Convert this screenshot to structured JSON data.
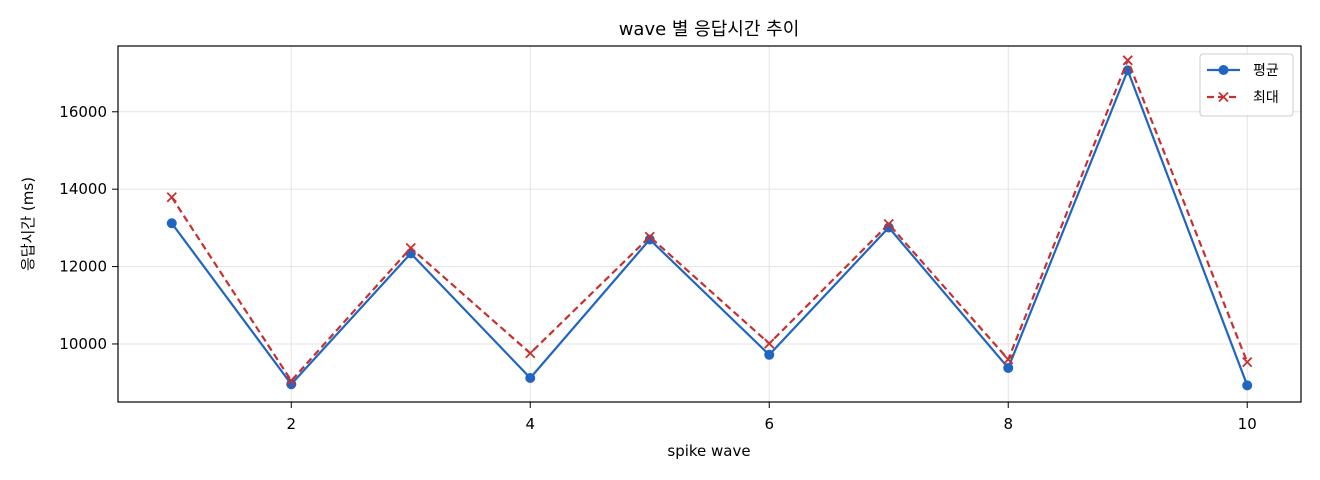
{
  "chart_data": {
    "type": "line",
    "title": "wave 별 응답시간 추이",
    "xlabel": "spike wave",
    "ylabel": "응답시간 (ms)",
    "xlim": [
      0.55,
      10.45
    ],
    "ylim": [
      8500,
      17700
    ],
    "x_ticks": [
      2,
      4,
      6,
      8,
      10
    ],
    "y_ticks": [
      10000,
      12000,
      14000,
      16000
    ],
    "grid": true,
    "legend_position": "top-right",
    "x": [
      1,
      2,
      3,
      4,
      5,
      6,
      7,
      8,
      9,
      10
    ],
    "series": [
      {
        "name": "평균",
        "color": "#1f66c2",
        "marker": "circle",
        "line_style": "solid",
        "values": [
          13120,
          8960,
          12340,
          9120,
          12700,
          9720,
          13010,
          9380,
          17070,
          8930
        ]
      },
      {
        "name": "최대",
        "color": "#c8302f",
        "marker": "x",
        "line_style": "dashed",
        "values": [
          13790,
          9050,
          12480,
          9760,
          12770,
          10010,
          13100,
          9600,
          17330,
          9530
        ]
      }
    ]
  }
}
